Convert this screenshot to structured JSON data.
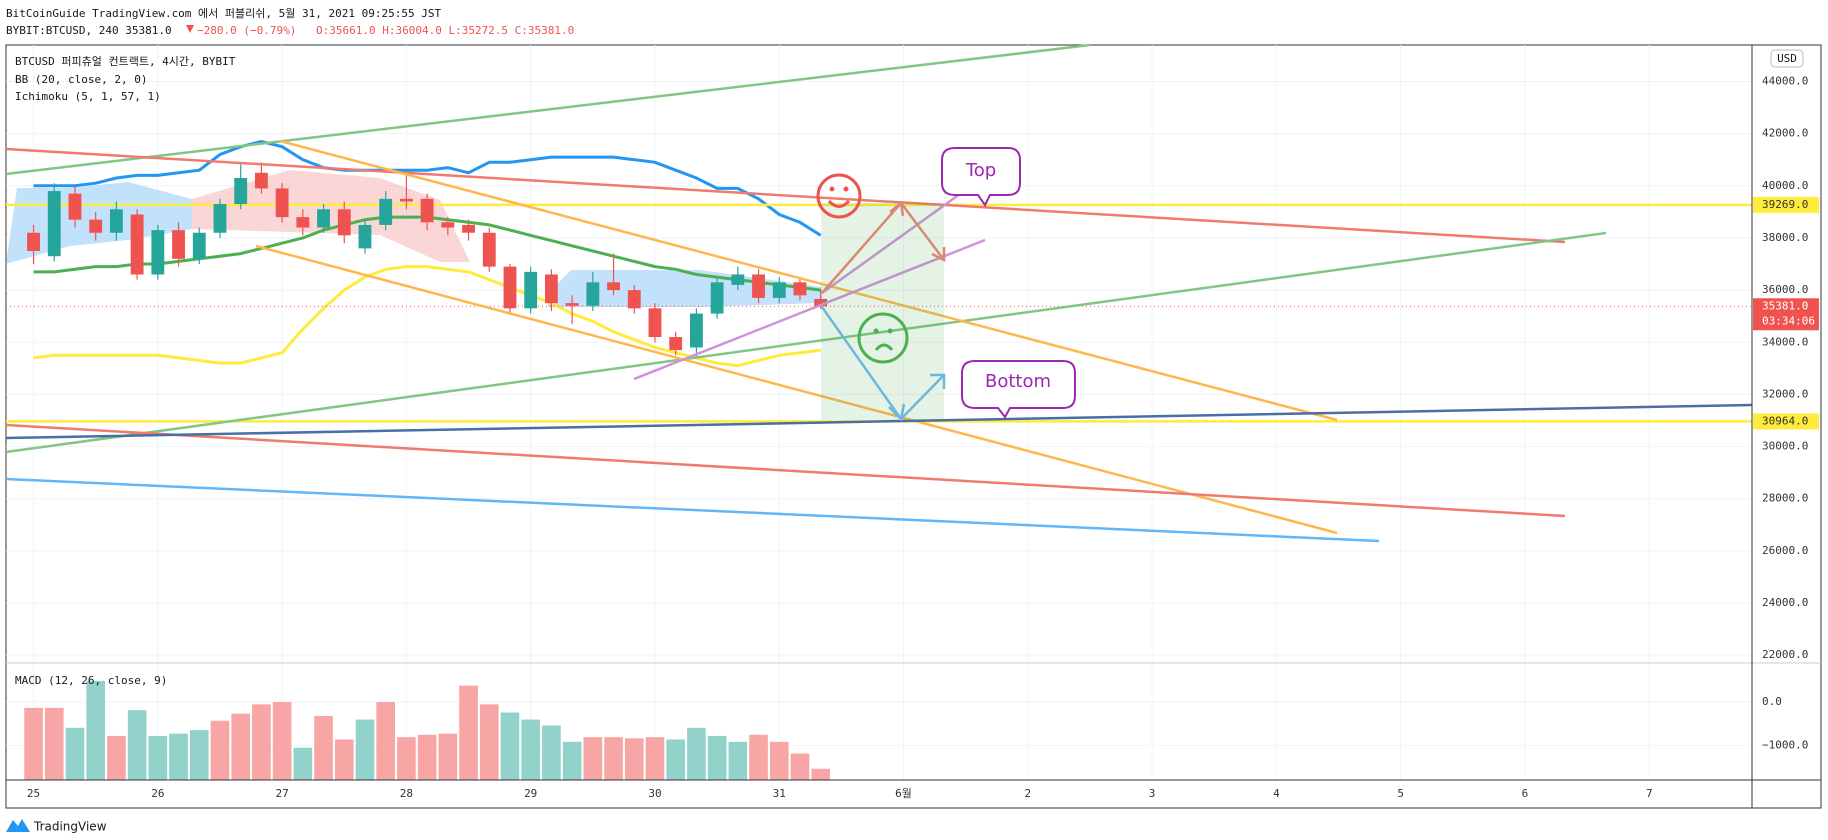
{
  "header": {
    "line1": "BitCoinGuide TradingView.com 에서 퍼블리쉬, 5월 31, 2021 09:25:55 JST",
    "symbol": "BYBIT:BTCUSD, 240 35381.0",
    "change": "−280.0 (−0.79%)",
    "ohlc": "O:35661.0 H:36004.0 L:35272.5 C:35381.0"
  },
  "footer": "TradingView",
  "annotations": {
    "top": "Top",
    "bottom": "Bottom"
  },
  "chart_data": [
    {
      "type": "candlestick",
      "title": "BTCUSD 퍼피츄얼 컨트랙트, 4시간, BYBIT",
      "indicators": [
        "BB (20, close, 2, 0)",
        "Ichimoku (5, 1, 57, 1)"
      ],
      "currency": "USD",
      "up_color": "#26a69a",
      "down_color": "#ef5350",
      "open": [
        38200,
        37300,
        39700,
        38700,
        38200,
        38900,
        36600,
        38300,
        37200,
        38200,
        39300,
        40500,
        39900,
        38800,
        38400,
        39100,
        37600,
        38500,
        39500,
        39500,
        38600,
        38500,
        38200,
        36900,
        35300,
        36600,
        35500,
        35400,
        36300,
        36000,
        35300,
        34200,
        33800,
        35100,
        36200,
        36600,
        35700,
        36300,
        35661
      ],
      "high": [
        38500,
        40100,
        40000,
        39000,
        39400,
        39100,
        38500,
        38600,
        38400,
        39500,
        40900,
        40900,
        40100,
        39100,
        39300,
        39400,
        38700,
        39800,
        40400,
        39700,
        38800,
        38700,
        38400,
        37000,
        36900,
        36800,
        35800,
        36700,
        37400,
        36200,
        35500,
        34400,
        35300,
        36500,
        36900,
        36800,
        36500,
        36500,
        36004
      ],
      "low": [
        37000,
        37100,
        38400,
        37900,
        37900,
        36400,
        36400,
        36900,
        37000,
        38000,
        39100,
        39700,
        38600,
        38100,
        38200,
        37800,
        37400,
        38300,
        39100,
        38300,
        38100,
        37900,
        36700,
        35100,
        35100,
        35200,
        34700,
        35200,
        35800,
        35100,
        34000,
        33500,
        33400,
        34900,
        36000,
        35500,
        35500,
        35600,
        35272.5
      ],
      "close": [
        37500,
        39800,
        38700,
        38200,
        39100,
        36600,
        38300,
        37200,
        38200,
        39300,
        40300,
        39900,
        38800,
        38400,
        39100,
        38100,
        38500,
        39500,
        39400,
        38600,
        38400,
        38200,
        36900,
        35300,
        36700,
        35500,
        35400,
        36300,
        36000,
        35300,
        34200,
        33700,
        35100,
        36300,
        36600,
        35700,
        36300,
        35800,
        35381
      ],
      "overlays": [
        {
          "color": "#2196f3",
          "values": [
            40000,
            40000,
            40000,
            40100,
            40300,
            40400,
            40400,
            40500,
            40600,
            41200,
            41500,
            41700,
            41500,
            41000,
            40700,
            40600,
            40600,
            40600,
            40600,
            40600,
            40700,
            40500,
            40900,
            40900,
            41000,
            41100,
            41100,
            41100,
            41100,
            41000,
            40900,
            40600,
            40300,
            39900,
            39900,
            39500,
            38900,
            38600,
            38100
          ]
        },
        {
          "color": "#4caf50",
          "values": [
            36700,
            36700,
            36800,
            36900,
            36900,
            37000,
            37000,
            37100,
            37200,
            37300,
            37400,
            37600,
            37800,
            38000,
            38300,
            38500,
            38700,
            38800,
            38800,
            38800,
            38700,
            38600,
            38500,
            38300,
            38100,
            37900,
            37700,
            37500,
            37300,
            37100,
            36900,
            36800,
            36600,
            36500,
            36400,
            36300,
            36200,
            36100,
            36000
          ]
        },
        {
          "color": "#ffeb3b",
          "values": [
            33400,
            33500,
            33500,
            33500,
            33500,
            33500,
            33500,
            33400,
            33300,
            33200,
            33200,
            33400,
            33600,
            34500,
            35300,
            36000,
            36500,
            36800,
            36900,
            36900,
            36800,
            36700,
            36400,
            36100,
            35800,
            35500,
            35100,
            34800,
            34400,
            34100,
            33800,
            33600,
            33400,
            33200,
            33100,
            33300,
            33500,
            33600,
            33700
          ]
        }
      ],
      "levels": [
        {
          "value": 39269,
          "label": "39269.0",
          "color": "#ffeb3b"
        },
        {
          "value": 30964,
          "label": "30964.0",
          "color": "#ffeb3b"
        }
      ],
      "last_price": {
        "value": 35381,
        "label": "35381.0",
        "countdown": "03:34:06",
        "color": "#ef5350"
      },
      "xlim": [
        -1.33,
        82.96
      ],
      "xticks": [
        {
          "value": 0,
          "label": "25"
        },
        {
          "value": 6,
          "label": "26"
        },
        {
          "value": 12,
          "label": "27"
        },
        {
          "value": 18,
          "label": "28"
        },
        {
          "value": 24,
          "label": "29"
        },
        {
          "value": 30,
          "label": "30"
        },
        {
          "value": 36,
          "label": "31"
        },
        {
          "value": 42,
          "label": "6월"
        },
        {
          "value": 48,
          "label": "2"
        },
        {
          "value": 54,
          "label": "3"
        },
        {
          "value": 60,
          "label": "4"
        },
        {
          "value": 66,
          "label": "5"
        },
        {
          "value": 72,
          "label": "6"
        },
        {
          "value": 78,
          "label": "7"
        }
      ],
      "ylim": [
        21700,
        45400
      ],
      "yticks": [
        {
          "value": 22000,
          "label": "22000.0"
        },
        {
          "value": 24000,
          "label": "24000.0"
        },
        {
          "value": 26000,
          "label": "26000.0"
        },
        {
          "value": 28000,
          "label": "28000.0"
        },
        {
          "value": 30000,
          "label": "30000.0"
        },
        {
          "value": 32000,
          "label": "32000.0"
        },
        {
          "value": 34000,
          "label": "34000.0"
        },
        {
          "value": 36000,
          "label": "36000.0"
        },
        {
          "value": 38000,
          "label": "38000.0"
        },
        {
          "value": 40000,
          "label": "40000.0"
        },
        {
          "value": 42000,
          "label": "42000.0"
        },
        {
          "value": 44000,
          "label": "44000.0"
        }
      ],
      "grid": true
    },
    {
      "type": "column",
      "title": "MACD (12, 26, close, 9)",
      "values": [
        -135,
        -135,
        -595,
        487,
        -784,
        -189,
        -784,
        -730,
        -649,
        -432,
        -270,
        -54,
        0,
        -1054,
        -324,
        -865,
        -405,
        0,
        -811,
        -757,
        -730,
        378,
        -54,
        -243,
        -405,
        -541,
        -919,
        -811,
        -811,
        -838,
        -811,
        -865,
        -595,
        -784,
        -919,
        -757,
        -919,
        -1189,
        -1541
      ],
      "colors": [
        "#f7a5a5",
        "#f7a5a5",
        "#93d2cb",
        "#93d2cb",
        "#f7a5a5",
        "#93d2cb",
        "#93d2cb",
        "#93d2cb",
        "#93d2cb",
        "#f7a5a5",
        "#f7a5a5",
        "#f7a5a5",
        "#f7a5a5",
        "#93d2cb",
        "#f7a5a5",
        "#f7a5a5",
        "#93d2cb",
        "#f7a5a5",
        "#f7a5a5",
        "#f7a5a5",
        "#f7a5a5",
        "#f7a5a5",
        "#f7a5a5",
        "#93d2cb",
        "#93d2cb",
        "#93d2cb",
        "#93d2cb",
        "#f7a5a5",
        "#f7a5a5",
        "#f7a5a5",
        "#f7a5a5",
        "#93d2cb",
        "#93d2cb",
        "#93d2cb",
        "#93d2cb",
        "#f7a5a5",
        "#f7a5a5",
        "#f7a5a5",
        "#f7a5a5"
      ],
      "ylim": [
        -1800,
        900
      ],
      "yticks": [
        {
          "value": 0,
          "label": "0.0"
        },
        {
          "value": -1000,
          "label": "−1000.0"
        }
      ]
    }
  ]
}
